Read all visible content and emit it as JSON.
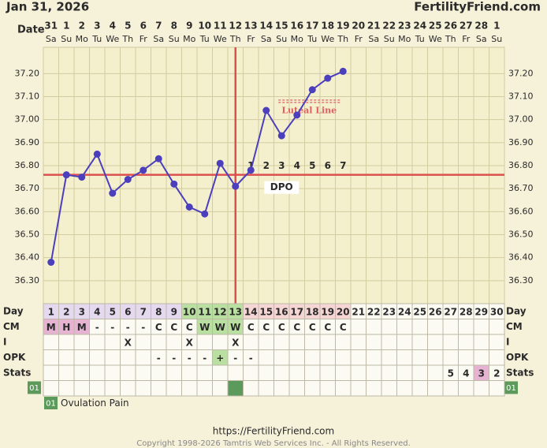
{
  "header": {
    "date": "Jan 31, 2026",
    "site": "FertilityFriend.com"
  },
  "chart_data": {
    "type": "line",
    "date_label": "Date",
    "dates": [
      "31",
      "1",
      "2",
      "3",
      "4",
      "5",
      "6",
      "7",
      "8",
      "9",
      "10",
      "11",
      "12",
      "13",
      "14",
      "15",
      "16",
      "17",
      "18",
      "19",
      "20",
      "21",
      "22",
      "23",
      "24",
      "25",
      "26",
      "27",
      "28",
      "1"
    ],
    "weekdays": [
      "Sa",
      "Su",
      "Mo",
      "Tu",
      "We",
      "Th",
      "Fr",
      "Sa",
      "Su",
      "Mo",
      "Tu",
      "We",
      "Th",
      "Fr",
      "Sa",
      "Su",
      "Mo",
      "Tu",
      "We",
      "Th",
      "Fr",
      "Sa",
      "Su",
      "Mo",
      "Tu",
      "We",
      "Th",
      "Fr",
      "Sa",
      "Su"
    ],
    "values": [
      36.38,
      36.76,
      36.75,
      36.85,
      36.68,
      36.74,
      36.78,
      36.83,
      36.72,
      36.62,
      36.59,
      36.81,
      36.71,
      36.78,
      37.04,
      36.93,
      37.02,
      37.13,
      37.18,
      37.21,
      null,
      null,
      null,
      null,
      null,
      null,
      null,
      null,
      null,
      null
    ],
    "color": "#4b3fbd",
    "ylim": [
      36.2,
      37.28
    ],
    "yticks": [
      {
        "value": 36.3,
        "label": "36.30"
      },
      {
        "value": 36.4,
        "label": "36.40"
      },
      {
        "value": 36.5,
        "label": "36.50"
      },
      {
        "value": 36.6,
        "label": "36.60"
      },
      {
        "value": 36.7,
        "label": "36.70"
      },
      {
        "value": 36.8,
        "label": "36.80"
      },
      {
        "value": 36.9,
        "label": "36.90"
      },
      {
        "value": 37.0,
        "label": "37.00"
      },
      {
        "value": 37.1,
        "label": "37.10"
      },
      {
        "value": 37.2,
        "label": "37.20"
      }
    ],
    "grid": true,
    "coverline": 36.76,
    "ovulation_day": 13,
    "line_color": "#dc5050",
    "luteal_line": {
      "label": "Luteal Line",
      "value": 37.08
    },
    "dpo": {
      "label": "DPO",
      "values": [
        1,
        2,
        3,
        4,
        5,
        6,
        7
      ]
    }
  },
  "table": {
    "row_labels": [
      "Day",
      "CM",
      "I",
      "OPK",
      "Stats"
    ],
    "cycle_days": [
      1,
      2,
      3,
      4,
      5,
      6,
      7,
      8,
      9,
      10,
      11,
      12,
      13,
      14,
      15,
      16,
      17,
      18,
      19,
      20,
      21,
      22,
      23,
      24,
      25,
      26,
      27,
      28,
      29,
      30
    ],
    "cm": [
      "M",
      "H",
      "M",
      "-",
      "-",
      "-",
      "-",
      "C",
      "C",
      "C",
      "W",
      "W",
      "W",
      "C",
      "C",
      "C",
      "C",
      "C",
      "C",
      "C",
      null,
      null,
      null,
      null,
      null,
      null,
      null,
      null,
      null,
      null
    ],
    "intercourse": [
      null,
      null,
      null,
      null,
      null,
      "X",
      null,
      null,
      null,
      "X",
      null,
      null,
      "X",
      null,
      null,
      null,
      null,
      null,
      null,
      null,
      null,
      null,
      null,
      null,
      null,
      null,
      null,
      null,
      null,
      null
    ],
    "opk": [
      null,
      null,
      null,
      null,
      null,
      null,
      null,
      "-",
      "-",
      "-",
      "-",
      "+",
      "-",
      "-",
      null,
      null,
      null,
      null,
      null,
      null,
      null,
      null,
      null,
      null,
      null,
      null,
      null,
      null,
      null,
      null
    ],
    "stats": [
      null,
      null,
      null,
      null,
      null,
      null,
      null,
      null,
      null,
      null,
      null,
      null,
      null,
      null,
      null,
      null,
      null,
      null,
      null,
      null,
      null,
      null,
      null,
      null,
      null,
      null,
      5,
      4,
      3,
      2
    ],
    "stats_highlight_day": 29,
    "fertile_window": [
      10,
      13
    ],
    "custom_row": {
      "code": "01",
      "days": [
        13
      ],
      "label": "Ovulation Pain"
    }
  },
  "footer": {
    "url": "https://FertilityFriend.com",
    "copyright": "Copyright 1998-2026 Tamtris Web Services Inc. - All Rights Reserved."
  }
}
